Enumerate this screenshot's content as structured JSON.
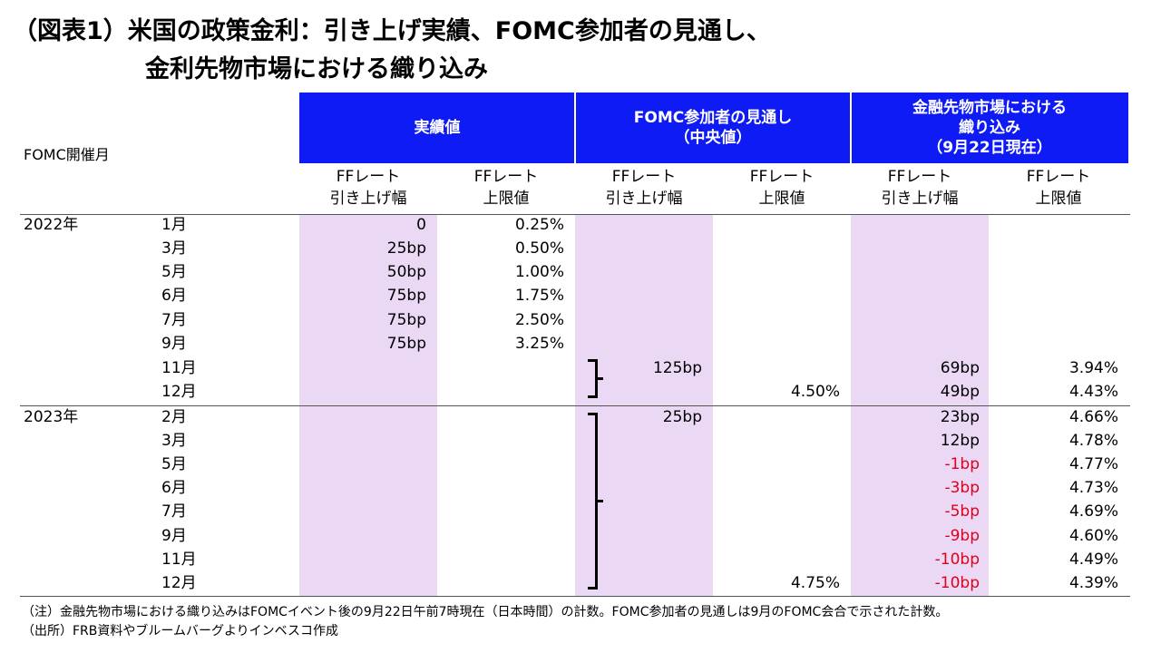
{
  "title": {
    "line1": "（図表1）米国の政策金利：引き上げ実績、FOMC参加者の見通し、",
    "line2": "金利先物市場における織り込み"
  },
  "table": {
    "row_header_label": "FOMC開催月",
    "group_headers": [
      "実績値",
      "FOMC参加者の見通し\n（中央値）",
      "金融先物市場における\n織り込み\n（9月22日現在）"
    ],
    "sub_headers": [
      "FFレート\n引き上げ幅",
      "FFレート\n上限値",
      "FFレート\n引き上げ幅",
      "FFレート\n上限値",
      "FFレート\n引き上げ幅",
      "FFレート\n上限値"
    ],
    "year_labels": [
      "2022年",
      "2023年"
    ],
    "rows": [
      {
        "month": "1月",
        "actual_hike": "0",
        "actual_upper": "0.25%",
        "fomc_hike": "",
        "fomc_upper": "",
        "mkt_hike": "",
        "mkt_upper": ""
      },
      {
        "month": "3月",
        "actual_hike": "25bp",
        "actual_upper": "0.50%",
        "fomc_hike": "",
        "fomc_upper": "",
        "mkt_hike": "",
        "mkt_upper": ""
      },
      {
        "month": "5月",
        "actual_hike": "50bp",
        "actual_upper": "1.00%",
        "fomc_hike": "",
        "fomc_upper": "",
        "mkt_hike": "",
        "mkt_upper": ""
      },
      {
        "month": "6月",
        "actual_hike": "75bp",
        "actual_upper": "1.75%",
        "fomc_hike": "",
        "fomc_upper": "",
        "mkt_hike": "",
        "mkt_upper": ""
      },
      {
        "month": "7月",
        "actual_hike": "75bp",
        "actual_upper": "2.50%",
        "fomc_hike": "",
        "fomc_upper": "",
        "mkt_hike": "",
        "mkt_upper": ""
      },
      {
        "month": "9月",
        "actual_hike": "75bp",
        "actual_upper": "3.25%",
        "fomc_hike": "",
        "fomc_upper": "",
        "mkt_hike": "",
        "mkt_upper": ""
      },
      {
        "month": "11月",
        "actual_hike": "",
        "actual_upper": "",
        "fomc_hike": "125bp",
        "fomc_upper": "",
        "mkt_hike": "69bp",
        "mkt_upper": "3.94%"
      },
      {
        "month": "12月",
        "actual_hike": "",
        "actual_upper": "",
        "fomc_hike": "",
        "fomc_upper": "4.50%",
        "mkt_hike": "49bp",
        "mkt_upper": "4.43%"
      },
      {
        "month": "2月",
        "actual_hike": "",
        "actual_upper": "",
        "fomc_hike": "25bp",
        "fomc_upper": "",
        "mkt_hike": "23bp",
        "mkt_upper": "4.66%"
      },
      {
        "month": "3月",
        "actual_hike": "",
        "actual_upper": "",
        "fomc_hike": "",
        "fomc_upper": "",
        "mkt_hike": "12bp",
        "mkt_upper": "4.78%"
      },
      {
        "month": "5月",
        "actual_hike": "",
        "actual_upper": "",
        "fomc_hike": "",
        "fomc_upper": "",
        "mkt_hike": "-1bp",
        "mkt_upper": "4.77%"
      },
      {
        "month": "6月",
        "actual_hike": "",
        "actual_upper": "",
        "fomc_hike": "",
        "fomc_upper": "",
        "mkt_hike": "-3bp",
        "mkt_upper": "4.73%"
      },
      {
        "month": "7月",
        "actual_hike": "",
        "actual_upper": "",
        "fomc_hike": "",
        "fomc_upper": "",
        "mkt_hike": "-5bp",
        "mkt_upper": "4.69%"
      },
      {
        "month": "9月",
        "actual_hike": "",
        "actual_upper": "",
        "fomc_hike": "",
        "fomc_upper": "",
        "mkt_hike": "-9bp",
        "mkt_upper": "4.60%"
      },
      {
        "month": "11月",
        "actual_hike": "",
        "actual_upper": "",
        "fomc_hike": "",
        "fomc_upper": "",
        "mkt_hike": "-10bp",
        "mkt_upper": "4.49%"
      },
      {
        "month": "12月",
        "actual_hike": "",
        "actual_upper": "",
        "fomc_hike": "",
        "fomc_upper": "4.75%",
        "mkt_hike": "-10bp",
        "mkt_upper": "4.39%"
      }
    ]
  },
  "notes": {
    "note": "（注）金融先物市場における織り込みはFOMCイベント後の9月22日午前7時現在（日本時間）の計数。FOMC参加者の見通しは9月のFOMC会合で示された計数。",
    "source": "（出所）FRB資料やブルームバーグよりインベスコ作成"
  },
  "colors": {
    "header_blue": "#0e1bf5",
    "band_lilac": "#ead8f5",
    "negative_red": "#e0001a"
  }
}
